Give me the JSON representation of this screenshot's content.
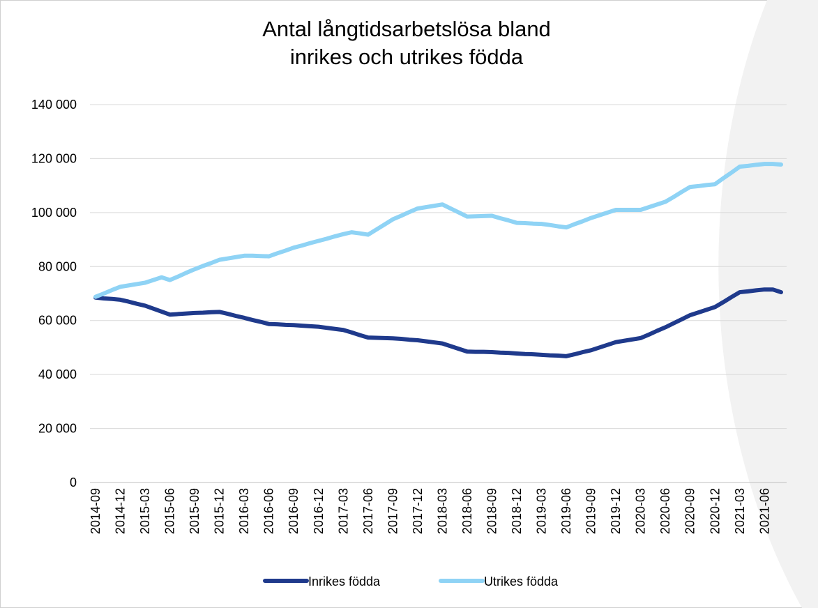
{
  "chart_data": {
    "type": "line",
    "title": [
      "Antal långtidsarbetslösa bland",
      "inrikes och utrikes födda"
    ],
    "categories": [
      "2014-09",
      null,
      null,
      "2014-12",
      null,
      null,
      "2015-03",
      null,
      null,
      "2015-06",
      null,
      null,
      "2015-09",
      null,
      null,
      "2015-12",
      null,
      null,
      "2016-03",
      null,
      null,
      "2016-06",
      null,
      null,
      "2016-09",
      null,
      null,
      "2016-12",
      null,
      null,
      "2017-03",
      null,
      null,
      "2017-06",
      null,
      null,
      "2017-09",
      null,
      null,
      "2017-12",
      null,
      null,
      "2018-03",
      null,
      null,
      "2018-06",
      null,
      null,
      "2018-09",
      null,
      null,
      "2018-12",
      null,
      null,
      "2019-03",
      null,
      null,
      "2019-06",
      null,
      null,
      "2019-09",
      null,
      null,
      "2019-12",
      null,
      null,
      "2020-03",
      null,
      null,
      "2020-06",
      null,
      null,
      "2020-09",
      null,
      null,
      "2020-12",
      null,
      null,
      "2021-03",
      null,
      null,
      "2021-06",
      null,
      null
    ],
    "series": [
      {
        "name": "Inrikes födda",
        "color": "#1f3a8c",
        "values": [
          68500,
          68200,
          68000,
          67700,
          67000,
          66200,
          65500,
          64400,
          63300,
          62200,
          62400,
          62600,
          62800,
          62900,
          63100,
          63200,
          62500,
          61700,
          61000,
          60200,
          59500,
          58700,
          58600,
          58400,
          58300,
          58100,
          57900,
          57700,
          57300,
          56900,
          56500,
          55600,
          54600,
          53700,
          53600,
          53500,
          53400,
          53200,
          52900,
          52700,
          52300,
          51900,
          51500,
          50500,
          49500,
          48500,
          48400,
          48400,
          48300,
          48100,
          48000,
          47800,
          47600,
          47500,
          47300,
          47100,
          47000,
          46800,
          47500,
          48300,
          49000,
          50000,
          51000,
          52000,
          52500,
          53000,
          53500,
          54800,
          56200,
          57500,
          59000,
          60500,
          62000,
          63000,
          64000,
          65000,
          66800,
          68700,
          70500,
          70800,
          71200,
          71500,
          71500,
          70500
        ]
      },
      {
        "name": "Utrikes födda",
        "color": "#8fd3f5",
        "values": [
          68800,
          70000,
          71300,
          72500,
          73000,
          73500,
          74000,
          75000,
          76000,
          75000,
          76300,
          77700,
          79000,
          80200,
          81300,
          82500,
          83000,
          83500,
          84000,
          84000,
          83900,
          83800,
          84900,
          85900,
          87000,
          87800,
          88700,
          89500,
          90300,
          91200,
          92000,
          92700,
          92300,
          91800,
          93700,
          95600,
          97500,
          98800,
          100200,
          101500,
          102000,
          102500,
          103000,
          101500,
          100000,
          98500,
          98600,
          98700,
          98800,
          97900,
          97100,
          96200,
          96100,
          95900,
          95800,
          95400,
          94900,
          94500,
          95700,
          96800,
          98000,
          99000,
          100000,
          101000,
          101000,
          101000,
          101000,
          102000,
          103000,
          104000,
          105800,
          107700,
          109500,
          109800,
          110200,
          110500,
          112700,
          114800,
          117000,
          117300,
          117700,
          118000,
          118000,
          117800
        ]
      }
    ],
    "ylim": [
      0,
      140000
    ],
    "yticks": [
      0,
      {
        "value": 20000,
        "label": "20 000"
      },
      {
        "value": 40000,
        "label": "40 000"
      },
      {
        "value": 60000,
        "label": "60 000"
      },
      {
        "value": 80000,
        "label": "80 000"
      },
      {
        "value": 100000,
        "label": "100 000"
      },
      {
        "value": 120000,
        "label": "120 000"
      },
      {
        "value": 140000,
        "label": "140 000"
      }
    ],
    "grid": true,
    "legend": "bottom"
  }
}
